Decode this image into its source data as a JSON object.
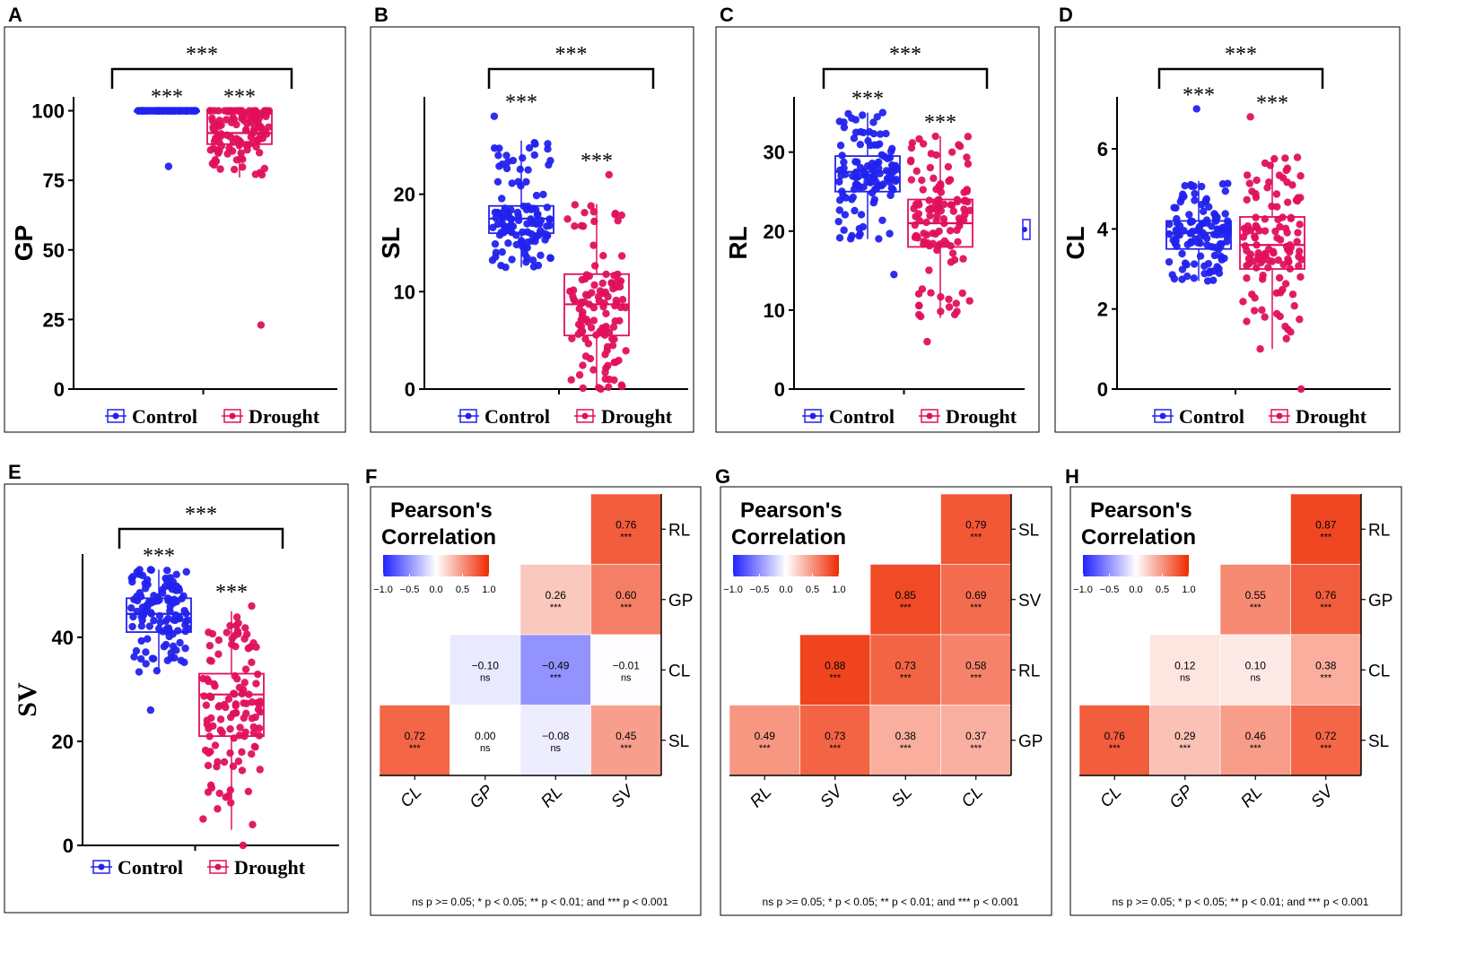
{
  "colors": {
    "control": "#2222ee",
    "drought": "#e0105c",
    "neg": "#2222ff",
    "pos": "#ee2a00"
  },
  "chart_data": [
    {
      "type": "boxplot",
      "panel": "A",
      "ylabel": "GP",
      "ylim": [
        0,
        105
      ],
      "yticks": [
        0,
        25,
        50,
        75,
        100
      ],
      "legend": [
        "Control",
        "Drought"
      ],
      "group_stars": [
        "***",
        "***"
      ],
      "comparison_stars": "***",
      "series": [
        {
          "name": "Control",
          "q1": 100,
          "median": 100,
          "q3": 100,
          "whisker_low": 100,
          "whisker_high": 100,
          "min": 80,
          "max": 100
        },
        {
          "name": "Drought",
          "q1": 88,
          "median": 92,
          "q3": 100,
          "whisker_low": 76,
          "whisker_high": 100,
          "min": 23,
          "max": 100
        }
      ]
    },
    {
      "type": "boxplot",
      "panel": "B",
      "ylabel": "SL",
      "ylim": [
        0,
        30
      ],
      "yticks": [
        0,
        10,
        20
      ],
      "legend": [
        "Control",
        "Drought"
      ],
      "group_stars": [
        "***",
        "***"
      ],
      "comparison_stars": "***",
      "series": [
        {
          "name": "Control",
          "q1": 16,
          "median": 17.5,
          "q3": 18.8,
          "whisker_low": 12.5,
          "whisker_high": 25.5,
          "min": 12.5,
          "max": 28
        },
        {
          "name": "Drought",
          "q1": 5.5,
          "median": 8.7,
          "q3": 11.8,
          "whisker_low": 0,
          "whisker_high": 19,
          "min": 0,
          "max": 22
        }
      ]
    },
    {
      "type": "boxplot",
      "panel": "C",
      "ylabel": "RL",
      "ylim": [
        0,
        37
      ],
      "yticks": [
        0,
        10,
        20,
        30
      ],
      "legend": [
        "Control",
        "Drought"
      ],
      "group_stars": [
        "***",
        "***"
      ],
      "comparison_stars": "***",
      "series": [
        {
          "name": "Control",
          "q1": 25,
          "median": 27.5,
          "q3": 29.5,
          "whisker_low": 19,
          "whisker_high": 35,
          "min": 14.5,
          "max": 35
        },
        {
          "name": "Drought",
          "q1": 18,
          "median": 21,
          "q3": 24,
          "whisker_low": 9,
          "whisker_high": 32,
          "min": 6,
          "max": 32
        }
      ]
    },
    {
      "type": "boxplot",
      "panel": "D",
      "ylabel": "CL",
      "ylim": [
        0,
        7.3
      ],
      "yticks": [
        0,
        2,
        4,
        6
      ],
      "legend": [
        "Control",
        "Drought"
      ],
      "group_stars": [
        "***",
        "***"
      ],
      "comparison_stars": "***",
      "series": [
        {
          "name": "Control",
          "q1": 3.5,
          "median": 3.9,
          "q3": 4.2,
          "whisker_low": 2.7,
          "whisker_high": 5.2,
          "min": 2.7,
          "max": 7.0
        },
        {
          "name": "Drought",
          "q1": 3.0,
          "median": 3.6,
          "q3": 4.3,
          "whisker_low": 1.0,
          "whisker_high": 5.8,
          "min": 0,
          "max": 6.8
        }
      ]
    },
    {
      "type": "boxplot",
      "panel": "E",
      "ylabel": "SV",
      "ylim": [
        0,
        56
      ],
      "yticks": [
        0,
        20,
        40
      ],
      "legend": [
        "Control",
        "Drought"
      ],
      "group_stars": [
        "***",
        "***"
      ],
      "comparison_stars": "***",
      "series": [
        {
          "name": "Control",
          "q1": 41,
          "median": 44.5,
          "q3": 47.5,
          "whisker_low": 33,
          "whisker_high": 53,
          "min": 26,
          "max": 53
        },
        {
          "name": "Drought",
          "q1": 21,
          "median": 29,
          "q3": 33,
          "whisker_low": 3,
          "whisker_high": 45,
          "min": 0,
          "max": 46
        }
      ]
    },
    {
      "type": "heatmap",
      "panel": "F",
      "title_line1": "Pearson's",
      "title_line2": "Correlation",
      "colorbar_ticks": [
        "−1.0",
        "−0.5",
        "0.0",
        "0.5",
        "1.0"
      ],
      "x_labels": [
        "CL",
        "GP",
        "RL",
        "SV"
      ],
      "y_labels": [
        "RL",
        "GP",
        "CL",
        "SL"
      ],
      "cells": [
        {
          "row": 0,
          "col": 3,
          "value": 0.76,
          "label": "0.76",
          "sig": "***"
        },
        {
          "row": 1,
          "col": 2,
          "value": 0.26,
          "label": "0.26",
          "sig": "***"
        },
        {
          "row": 1,
          "col": 3,
          "value": 0.6,
          "label": "0.60",
          "sig": "***"
        },
        {
          "row": 2,
          "col": 1,
          "value": -0.1,
          "label": "−0.10",
          "sig": "ns"
        },
        {
          "row": 2,
          "col": 2,
          "value": -0.49,
          "label": "−0.49",
          "sig": "***"
        },
        {
          "row": 2,
          "col": 3,
          "value": -0.01,
          "label": "−0.01",
          "sig": "ns"
        },
        {
          "row": 3,
          "col": 0,
          "value": 0.72,
          "label": "0.72",
          "sig": "***"
        },
        {
          "row": 3,
          "col": 1,
          "value": 0.0,
          "label": "0.00",
          "sig": "ns"
        },
        {
          "row": 3,
          "col": 2,
          "value": -0.08,
          "label": "−0.08",
          "sig": "ns"
        },
        {
          "row": 3,
          "col": 3,
          "value": 0.45,
          "label": "0.45",
          "sig": "***"
        }
      ],
      "footnote": "ns p >= 0.05; * p < 0.05; ** p < 0.01; and *** p < 0.001"
    },
    {
      "type": "heatmap",
      "panel": "G",
      "title_line1": "Pearson's",
      "title_line2": "Correlation",
      "colorbar_ticks": [
        "−1.0",
        "−0.5",
        "0.0",
        "0.5",
        "1.0"
      ],
      "x_labels": [
        "RL",
        "SV",
        "SL",
        "CL"
      ],
      "y_labels": [
        "SL",
        "SV",
        "RL",
        "GP"
      ],
      "cells": [
        {
          "row": 0,
          "col": 3,
          "value": 0.79,
          "label": "0.79",
          "sig": "***"
        },
        {
          "row": 1,
          "col": 2,
          "value": 0.85,
          "label": "0.85",
          "sig": "***"
        },
        {
          "row": 1,
          "col": 3,
          "value": 0.69,
          "label": "0.69",
          "sig": "***"
        },
        {
          "row": 2,
          "col": 1,
          "value": 0.88,
          "label": "0.88",
          "sig": "***"
        },
        {
          "row": 2,
          "col": 2,
          "value": 0.73,
          "label": "0.73",
          "sig": "***"
        },
        {
          "row": 2,
          "col": 3,
          "value": 0.58,
          "label": "0.58",
          "sig": "***"
        },
        {
          "row": 3,
          "col": 0,
          "value": 0.49,
          "label": "0.49",
          "sig": "***"
        },
        {
          "row": 3,
          "col": 1,
          "value": 0.73,
          "label": "0.73",
          "sig": "***"
        },
        {
          "row": 3,
          "col": 2,
          "value": 0.38,
          "label": "0.38",
          "sig": "***"
        },
        {
          "row": 3,
          "col": 3,
          "value": 0.37,
          "label": "0.37",
          "sig": "***"
        }
      ],
      "footnote": "ns p >= 0.05; * p < 0.05; ** p < 0.01; and *** p < 0.001"
    },
    {
      "type": "heatmap",
      "panel": "H",
      "title_line1": "Pearson's",
      "title_line2": "Correlation",
      "colorbar_ticks": [
        "−1.0",
        "−0.5",
        "0.0",
        "0.5",
        "1.0"
      ],
      "x_labels": [
        "CL",
        "GP",
        "RL",
        "SV"
      ],
      "y_labels": [
        "RL",
        "GP",
        "CL",
        "SL"
      ],
      "cells": [
        {
          "row": 0,
          "col": 3,
          "value": 0.87,
          "label": "0.87",
          "sig": "***"
        },
        {
          "row": 1,
          "col": 2,
          "value": 0.55,
          "label": "0.55",
          "sig": "***"
        },
        {
          "row": 1,
          "col": 3,
          "value": 0.76,
          "label": "0.76",
          "sig": "***"
        },
        {
          "row": 2,
          "col": 1,
          "value": 0.12,
          "label": "0.12",
          "sig": "ns"
        },
        {
          "row": 2,
          "col": 2,
          "value": 0.1,
          "label": "0.10",
          "sig": "ns"
        },
        {
          "row": 2,
          "col": 3,
          "value": 0.38,
          "label": "0.38",
          "sig": "***"
        },
        {
          "row": 3,
          "col": 0,
          "value": 0.76,
          "label": "0.76",
          "sig": "***"
        },
        {
          "row": 3,
          "col": 1,
          "value": 0.29,
          "label": "0.29",
          "sig": "***"
        },
        {
          "row": 3,
          "col": 2,
          "value": 0.46,
          "label": "0.46",
          "sig": "***"
        },
        {
          "row": 3,
          "col": 3,
          "value": 0.72,
          "label": "0.72",
          "sig": "***"
        }
      ],
      "footnote": "ns p >= 0.05; * p < 0.05; ** p < 0.01; and *** p < 0.001"
    }
  ]
}
